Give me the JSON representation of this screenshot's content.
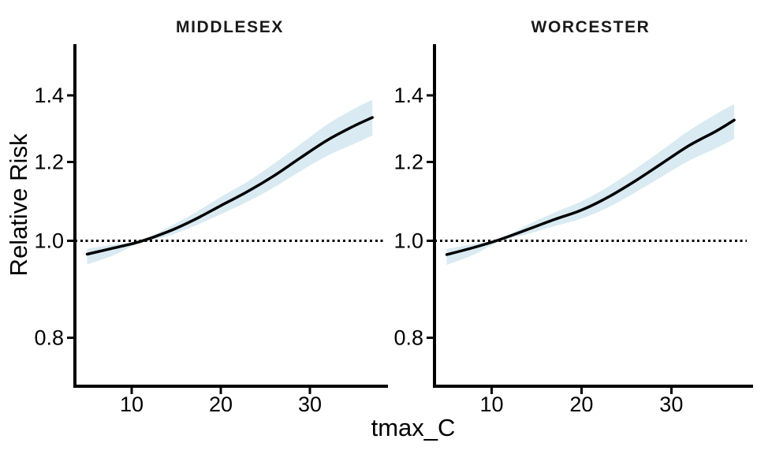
{
  "figure": {
    "background": "#ffffff"
  },
  "chart_data": {
    "type": "line",
    "title": "",
    "xlabel": "tmax_C",
    "ylabel": "Relative Risk",
    "x_ticks": [
      10,
      20,
      30
    ],
    "y_ticks": [
      "0.8",
      "1.0",
      "1.2",
      "1.4"
    ],
    "y_scale": "log",
    "x_range": [
      3.63,
      38.4
    ],
    "y_range": [
      0.715,
      1.57
    ],
    "reference_line": 1.0,
    "reference_line_style": "dotted",
    "grid": false,
    "legend": false,
    "line_color": "#000000",
    "band_color": "#d9eaf2",
    "axis_color": "#000000",
    "x": [
      5,
      8,
      11,
      14,
      17,
      20,
      23,
      26,
      29,
      32,
      35,
      37
    ],
    "panels": [
      {
        "title": "MIDDLESEX",
        "rr": [
          0.97,
          0.984,
          0.999,
          1.021,
          1.05,
          1.085,
          1.121,
          1.163,
          1.213,
          1.263,
          1.305,
          1.33
        ],
        "lo": [
          0.947,
          0.968,
          0.996,
          1.011,
          1.035,
          1.064,
          1.095,
          1.132,
          1.176,
          1.218,
          1.252,
          1.276
        ],
        "hi": [
          0.982,
          0.992,
          1.001,
          1.031,
          1.066,
          1.107,
          1.147,
          1.196,
          1.252,
          1.31,
          1.358,
          1.386
        ]
      },
      {
        "title": "WORCESTER",
        "rr": [
          0.969,
          0.985,
          1.004,
          1.027,
          1.051,
          1.074,
          1.107,
          1.149,
          1.197,
          1.247,
          1.289,
          1.322
        ],
        "lo": [
          0.946,
          0.969,
          1.0,
          1.016,
          1.035,
          1.053,
          1.081,
          1.119,
          1.161,
          1.204,
          1.239,
          1.266
        ],
        "hi": [
          0.982,
          0.993,
          1.006,
          1.038,
          1.068,
          1.096,
          1.134,
          1.181,
          1.234,
          1.291,
          1.341,
          1.372
        ]
      }
    ]
  }
}
